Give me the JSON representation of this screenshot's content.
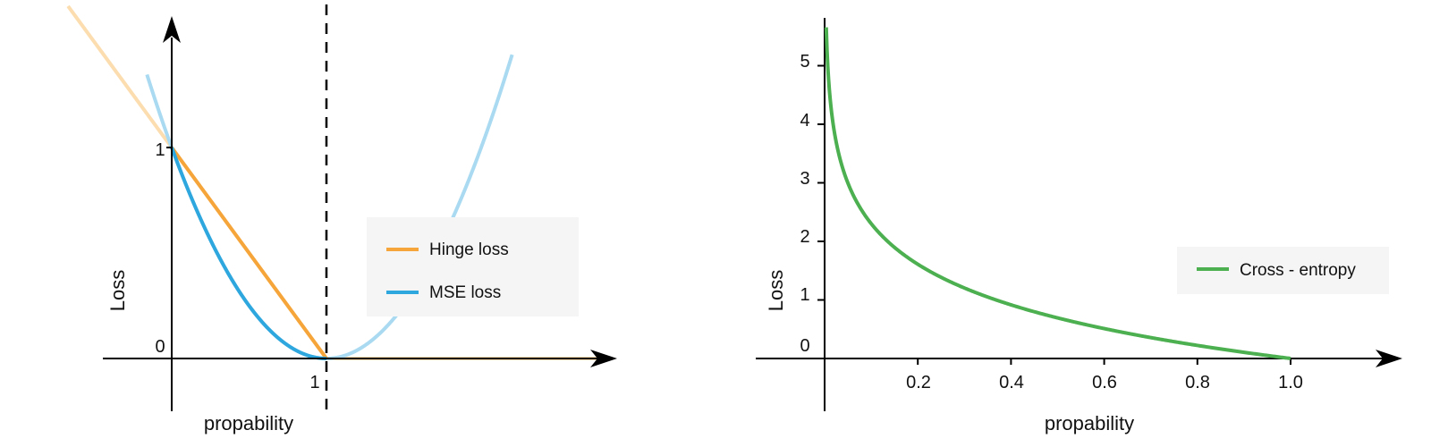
{
  "chart_data": [
    {
      "type": "line",
      "xlabel": "propability",
      "ylabel": "Loss",
      "xticks": [
        {
          "v": 1,
          "label": "1"
        }
      ],
      "yticks": [
        {
          "v": 0,
          "label": "0"
        },
        {
          "v": 1,
          "label": "1"
        }
      ],
      "xlim": [
        -0.45,
        2.85
      ],
      "ylim": [
        -0.25,
        1.7
      ],
      "vline": {
        "x": 1,
        "style": "dashed"
      },
      "legend_position": "center-right",
      "series": [
        {
          "name": "Hinge loss",
          "color": "#F5A53A",
          "faded_color": "#FBDDB0",
          "function": "hinge",
          "expression": "max(0, 1 - p)",
          "domain": [
            0,
            1
          ],
          "extended_domain": [
            -0.67,
            2.82
          ]
        },
        {
          "name": "MSE loss",
          "color": "#2EA6DE",
          "faded_color": "#A9DAF1",
          "function": "mse",
          "expression": "(1 - p)^2",
          "domain": [
            0,
            1
          ],
          "extended_domain": [
            -0.16,
            2.2
          ]
        }
      ]
    },
    {
      "type": "line",
      "xlabel": "propability",
      "ylabel": "Loss",
      "xticks": [
        {
          "v": 0.2,
          "label": "0.2"
        },
        {
          "v": 0.4,
          "label": "0.4"
        },
        {
          "v": 0.6,
          "label": "0.6"
        },
        {
          "v": 0.8,
          "label": "0.8"
        },
        {
          "v": 1.0,
          "label": "1.0"
        }
      ],
      "yticks": [
        {
          "v": 0,
          "label": "0"
        },
        {
          "v": 1,
          "label": "1"
        },
        {
          "v": 2,
          "label": "2"
        },
        {
          "v": 3,
          "label": "3"
        },
        {
          "v": 4,
          "label": "4"
        },
        {
          "v": 5,
          "label": "5"
        }
      ],
      "xlim": [
        -0.15,
        1.25
      ],
      "ylim": [
        -0.9,
        6.1
      ],
      "legend_position": "right",
      "series": [
        {
          "name": "Cross - entropy",
          "color": "#4CAF50",
          "function": "cross_entropy",
          "expression": "-ln(p)",
          "domain": [
            0.0035,
            1.0
          ]
        }
      ]
    }
  ]
}
